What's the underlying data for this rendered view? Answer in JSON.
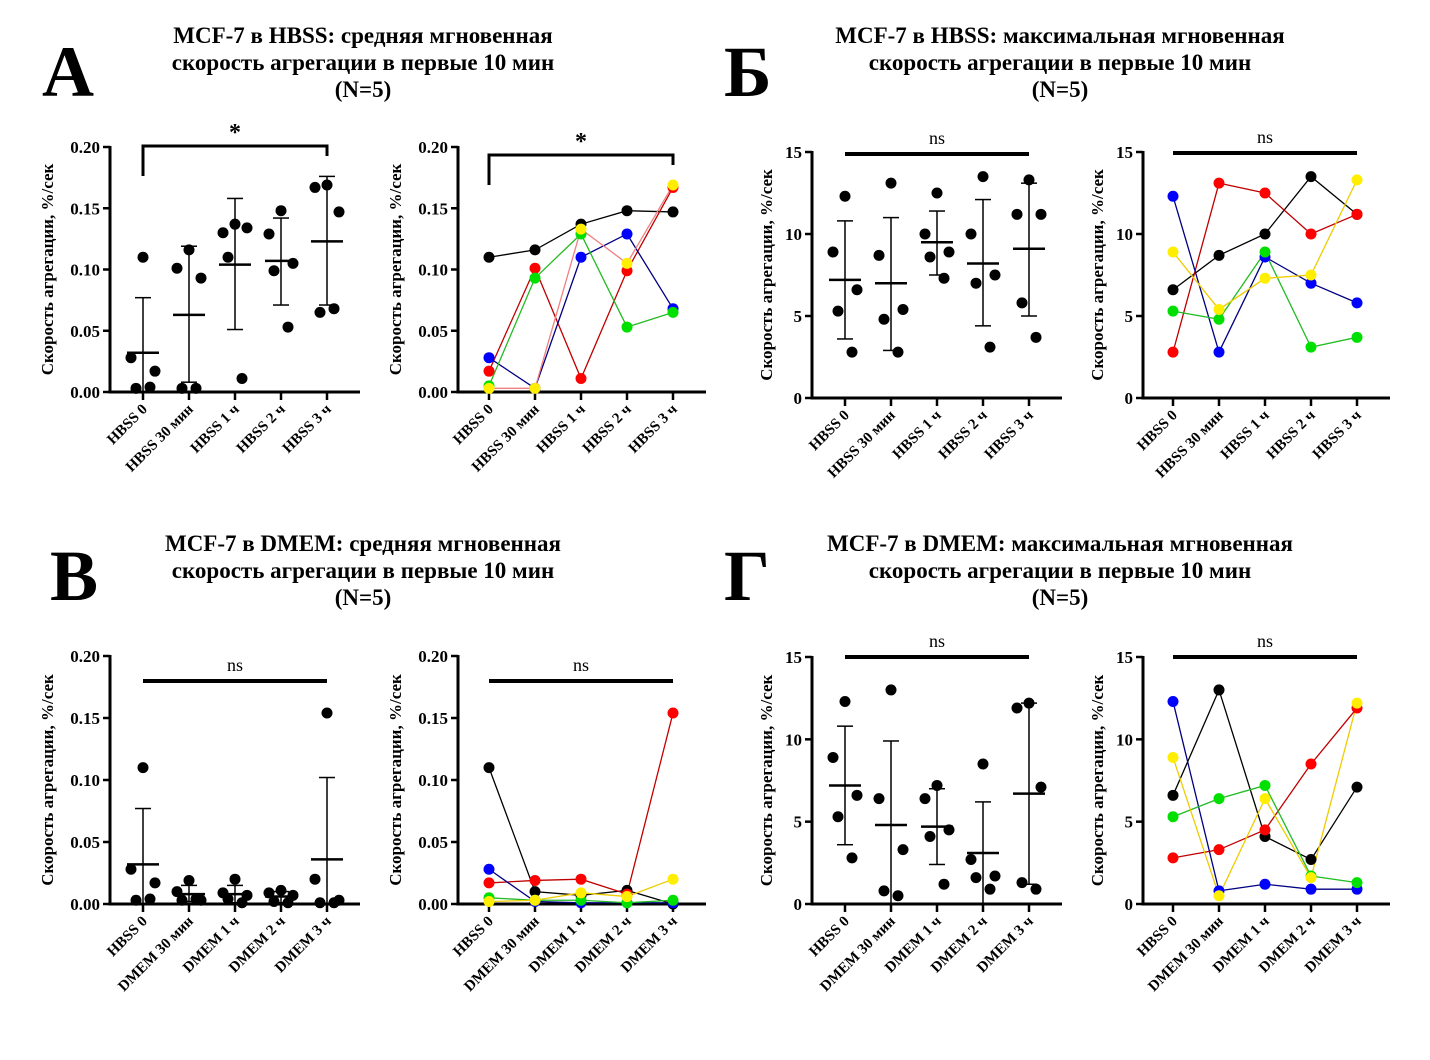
{
  "panels": [
    {
      "letter": "А",
      "title_lines": [
        "MCF-7 в HBSS: средняя мгновенная",
        "скорость агрегации в первые 10 мин",
        "(N=5)"
      ]
    },
    {
      "letter": "Б",
      "title_lines": [
        "MCF-7 в HBSS: максимальная мгновенная",
        "скорость агрегации в первые 10 мин",
        "(N=5)"
      ]
    },
    {
      "letter": "В",
      "title_lines": [
        "MCF-7 в DMEM: средняя мгновенная",
        "скорость агрегации в первые 10 мин",
        "(N=5)"
      ]
    },
    {
      "letter": "Г",
      "title_lines": [
        "MCF-7 в DMEM: максимальная мгновенная",
        "скорость агрегации в первые 10 мин",
        "(N=5)"
      ]
    }
  ],
  "series_colors": {
    "black": {
      "marker": "#000000",
      "line": "#000000"
    },
    "red": {
      "marker": "#ff0000",
      "line": "#c00000"
    },
    "blue": {
      "marker": "#0000ff",
      "line": "#000080"
    },
    "green": {
      "marker": "#00e000",
      "line": "#22bb22"
    },
    "yellow": {
      "marker": "#ffee00",
      "line": "#eecc00"
    }
  },
  "chart_data": [
    {
      "id": "A-scatter",
      "panel": "А",
      "type": "scatter",
      "ylabel": "Скорость агрегации, %/сек",
      "categories": [
        "HBSS 0",
        "HBSS 30 мин",
        "HBSS 1 ч",
        "HBSS 2 ч",
        "HBSS 3 ч"
      ],
      "ylim": [
        0,
        0.2
      ],
      "yticks": [
        "0.00",
        "0.05",
        "0.10",
        "0.15",
        "0.20"
      ],
      "ytick_values": [
        0,
        0.05,
        0.1,
        0.15,
        0.2
      ],
      "points": [
        [
          0.11,
          0.028,
          0.017,
          0.003,
          0.004
        ],
        [
          0.116,
          0.101,
          0.093,
          0.003,
          0.003
        ],
        [
          0.137,
          0.13,
          0.134,
          0.11,
          0.011
        ],
        [
          0.148,
          0.129,
          0.105,
          0.099,
          0.053
        ],
        [
          0.169,
          0.167,
          0.147,
          0.065,
          0.068
        ]
      ],
      "mean": [
        0.032,
        0.063,
        0.104,
        0.107,
        0.123
      ],
      "sd_low": [
        0.0,
        0.008,
        0.051,
        0.071,
        0.071
      ],
      "sd_high": [
        0.077,
        0.119,
        0.158,
        0.142,
        0.176
      ],
      "significance": {
        "label": "*",
        "from": 0,
        "to": 4,
        "y": 0.2,
        "bracket": true
      }
    },
    {
      "id": "A-lines",
      "panel": "А",
      "type": "line",
      "ylabel": "Скорость агрегации, %/сек",
      "categories": [
        "HBSS 0",
        "HBSS 30 мин",
        "HBSS 1 ч",
        "HBSS 2 ч",
        "HBSS 3 ч"
      ],
      "ylim": [
        0,
        0.2
      ],
      "yticks": [
        "0.00",
        "0.05",
        "0.10",
        "0.15",
        "0.20"
      ],
      "ytick_values": [
        0,
        0.05,
        0.1,
        0.15,
        0.2
      ],
      "series": [
        {
          "name": "black",
          "values": [
            0.11,
            0.116,
            0.137,
            0.148,
            0.147
          ]
        },
        {
          "name": "red",
          "values": [
            0.017,
            0.101,
            0.011,
            0.099,
            0.167
          ]
        },
        {
          "name": "blue",
          "values": [
            0.028,
            0.003,
            0.11,
            0.129,
            0.068
          ]
        },
        {
          "name": "green",
          "values": [
            0.005,
            0.093,
            0.129,
            0.053,
            0.065
          ]
        },
        {
          "name": "yellow",
          "values": [
            0.003,
            0.003,
            0.133,
            0.105,
            0.169
          ],
          "line_color": "#f08080"
        }
      ],
      "significance": {
        "label": "*",
        "from": 0,
        "to": 4,
        "y": 0.2,
        "bracket": true
      }
    },
    {
      "id": "B-scatter",
      "panel": "Б",
      "type": "scatter",
      "ylabel": "Скорость агрегации, %/сек",
      "categories": [
        "HBSS 0",
        "HBSS 30 мин",
        "HBSS 1 ч",
        "HBSS 2 ч",
        "HBSS 3 ч"
      ],
      "ylim": [
        0,
        15
      ],
      "yticks": [
        "0",
        "5",
        "10",
        "15"
      ],
      "ytick_values": [
        0,
        5,
        10,
        15
      ],
      "points": [
        [
          12.3,
          8.9,
          6.6,
          5.3,
          2.8
        ],
        [
          13.1,
          8.7,
          5.4,
          4.8,
          2.8
        ],
        [
          12.5,
          10.0,
          8.9,
          8.6,
          7.3
        ],
        [
          13.5,
          10.0,
          7.5,
          7.0,
          3.1
        ],
        [
          13.3,
          11.2,
          11.2,
          5.8,
          3.7
        ]
      ],
      "mean": [
        7.2,
        7.0,
        9.5,
        8.2,
        9.1
      ],
      "sd_low": [
        3.6,
        2.9,
        7.5,
        4.4,
        5.0
      ],
      "sd_high": [
        10.8,
        11.0,
        11.4,
        12.1,
        13.1
      ],
      "significance": {
        "label": "ns",
        "from": 0,
        "to": 4,
        "y": 15,
        "bracket": false
      }
    },
    {
      "id": "B-lines",
      "panel": "Б",
      "type": "line",
      "ylabel": "Скорость агрегации, %/сек",
      "categories": [
        "HBSS 0",
        "HBSS 30 мин",
        "HBSS 1 ч",
        "HBSS 2 ч",
        "HBSS 3 ч"
      ],
      "ylim": [
        0,
        15
      ],
      "yticks": [
        "0",
        "5",
        "10",
        "15"
      ],
      "ytick_values": [
        0,
        5,
        10,
        15
      ],
      "series": [
        {
          "name": "black",
          "values": [
            6.6,
            8.7,
            10.0,
            13.5,
            11.2
          ]
        },
        {
          "name": "red",
          "values": [
            2.8,
            13.1,
            12.5,
            10.0,
            11.2
          ]
        },
        {
          "name": "blue",
          "values": [
            12.3,
            2.8,
            8.6,
            7.0,
            5.8
          ]
        },
        {
          "name": "green",
          "values": [
            5.3,
            4.8,
            8.9,
            3.1,
            3.7
          ]
        },
        {
          "name": "yellow",
          "values": [
            8.9,
            5.4,
            7.3,
            7.5,
            13.3
          ]
        }
      ],
      "significance": {
        "label": "ns",
        "from": 0,
        "to": 4,
        "y": 15,
        "bracket": false
      }
    },
    {
      "id": "V-scatter",
      "panel": "В",
      "type": "scatter",
      "ylabel": "Скорость агрегации, %/сек",
      "categories": [
        "HBSS 0",
        "DMEM 30 мин",
        "DMEM 1 ч",
        "DMEM 2 ч",
        "DMEM 3 ч"
      ],
      "ylim": [
        0,
        0.2
      ],
      "yticks": [
        "0.00",
        "0.05",
        "0.10",
        "0.15",
        "0.20"
      ],
      "ytick_values": [
        0,
        0.05,
        0.1,
        0.15,
        0.2
      ],
      "points": [
        [
          0.11,
          0.028,
          0.017,
          0.003,
          0.004
        ],
        [
          0.019,
          0.01,
          0.003,
          0.003,
          0.004
        ],
        [
          0.02,
          0.009,
          0.007,
          0.004,
          0.001
        ],
        [
          0.011,
          0.009,
          0.007,
          0.002,
          0.001
        ],
        [
          0.154,
          0.02,
          0.003,
          0.001,
          0.001
        ]
      ],
      "mean": [
        0.032,
        0.008,
        0.008,
        0.006,
        0.036
      ],
      "sd_low": [
        0.0,
        0.002,
        0.001,
        0.001,
        0.0
      ],
      "sd_high": [
        0.077,
        0.015,
        0.015,
        0.01,
        0.102
      ],
      "significance": {
        "label": "ns",
        "from": 0,
        "to": 4,
        "y": 0.18,
        "bracket": false
      }
    },
    {
      "id": "V-lines",
      "panel": "В",
      "type": "line",
      "ylabel": "Скорость агрегации, %/сек",
      "categories": [
        "HBSS 0",
        "DMEM 30 мин",
        "DMEM 1 ч",
        "DMEM 2 ч",
        "DMEM 3 ч"
      ],
      "ylim": [
        0,
        0.2
      ],
      "yticks": [
        "0.00",
        "0.05",
        "0.10",
        "0.15",
        "0.20"
      ],
      "ytick_values": [
        0,
        0.05,
        0.1,
        0.15,
        0.2
      ],
      "series": [
        {
          "name": "black",
          "values": [
            0.11,
            0.01,
            0.007,
            0.011,
            0.0
          ]
        },
        {
          "name": "red",
          "values": [
            0.017,
            0.019,
            0.02,
            0.008,
            0.154
          ]
        },
        {
          "name": "blue",
          "values": [
            0.028,
            0.002,
            0.001,
            0.001,
            0.001
          ]
        },
        {
          "name": "green",
          "values": [
            0.005,
            0.003,
            0.003,
            0.001,
            0.003
          ]
        },
        {
          "name": "yellow",
          "values": [
            0.002,
            0.003,
            0.009,
            0.006,
            0.02
          ]
        }
      ],
      "significance": {
        "label": "ns",
        "from": 0,
        "to": 4,
        "y": 0.18,
        "bracket": false
      }
    },
    {
      "id": "G-scatter",
      "panel": "Г",
      "type": "scatter",
      "ylabel": "Скорость агрегации, %/сек",
      "categories": [
        "HBSS 0",
        "DMEM 30 мин",
        "DMEM 1 ч",
        "DMEM 2 ч",
        "DMEM 3 ч"
      ],
      "ylim": [
        0,
        15
      ],
      "yticks": [
        "0",
        "5",
        "10",
        "15"
      ],
      "ytick_values": [
        0,
        5,
        10,
        15
      ],
      "points": [
        [
          12.3,
          8.9,
          6.6,
          5.3,
          2.8
        ],
        [
          13.0,
          6.4,
          3.3,
          0.8,
          0.5
        ],
        [
          7.2,
          6.4,
          4.5,
          4.1,
          1.2
        ],
        [
          8.5,
          2.7,
          1.7,
          1.6,
          0.9
        ],
        [
          12.2,
          11.9,
          7.1,
          1.3,
          0.9
        ]
      ],
      "mean": [
        7.2,
        4.8,
        4.7,
        3.1,
        6.7
      ],
      "sd_low": [
        3.6,
        0.0,
        2.4,
        0.0,
        1.2
      ],
      "sd_high": [
        10.8,
        9.9,
        7.0,
        6.2,
        12.2
      ],
      "significance": {
        "label": "ns",
        "from": 0,
        "to": 4,
        "y": 15,
        "bracket": false
      }
    },
    {
      "id": "G-lines",
      "panel": "Г",
      "type": "line",
      "ylabel": "Скорость агрегации, %/сек",
      "categories": [
        "HBSS 0",
        "DMEM 30 мин",
        "DMEM 1 ч",
        "DMEM 2 ч",
        "DMEM 3 ч"
      ],
      "ylim": [
        0,
        15
      ],
      "yticks": [
        "0",
        "5",
        "10",
        "15"
      ],
      "ytick_values": [
        0,
        5,
        10,
        15
      ],
      "series": [
        {
          "name": "black",
          "values": [
            6.6,
            13.0,
            4.1,
            2.7,
            7.1
          ]
        },
        {
          "name": "red",
          "values": [
            2.8,
            3.3,
            4.5,
            8.5,
            11.9
          ]
        },
        {
          "name": "blue",
          "values": [
            12.3,
            0.8,
            1.2,
            0.9,
            0.9
          ]
        },
        {
          "name": "green",
          "values": [
            5.3,
            6.4,
            7.2,
            1.7,
            1.3
          ]
        },
        {
          "name": "yellow",
          "values": [
            8.9,
            0.5,
            6.4,
            1.6,
            12.2
          ]
        }
      ],
      "significance": {
        "label": "ns",
        "from": 0,
        "to": 4,
        "y": 15,
        "bracket": false
      }
    }
  ]
}
